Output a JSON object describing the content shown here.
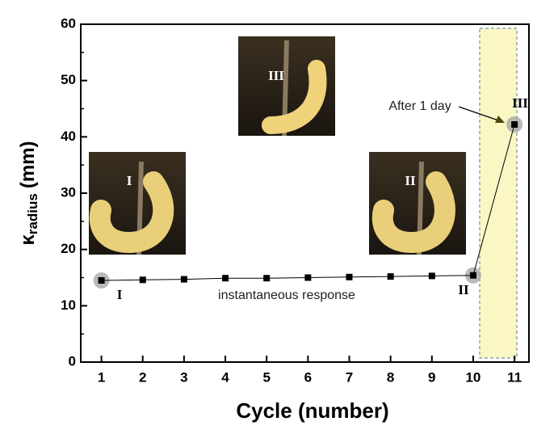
{
  "chart_data": {
    "type": "line",
    "x_label": "Cycle (number)",
    "y_label": {
      "symbol": "κ",
      "subscript": "radius",
      "unit": "(mm)"
    },
    "x": [
      1,
      2,
      3,
      4,
      5,
      6,
      7,
      8,
      9,
      10,
      11
    ],
    "values": [
      14.5,
      14.6,
      14.7,
      14.9,
      14.9,
      15.0,
      15.1,
      15.2,
      15.3,
      15.4,
      42.2
    ],
    "color": "#000000",
    "xlim": [
      0.5,
      11.35
    ],
    "ylim": [
      0,
      60
    ],
    "xticks": [
      1,
      2,
      3,
      4,
      5,
      6,
      7,
      8,
      9,
      10,
      11
    ],
    "yticks": [
      0,
      10,
      20,
      30,
      40,
      50,
      60
    ],
    "annotations": {
      "response": "instantaneous response",
      "day": "After 1 day",
      "point_labels": [
        "I",
        "II",
        "III"
      ],
      "photo_labels": [
        "I",
        "III",
        "II"
      ]
    }
  }
}
